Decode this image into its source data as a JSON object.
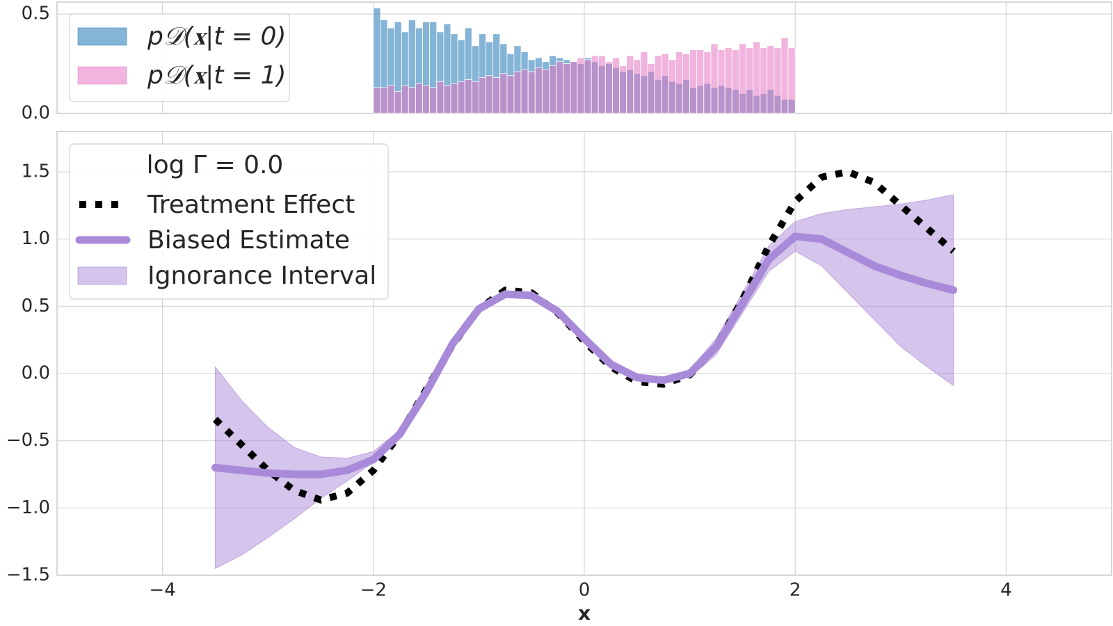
{
  "chart_data": [
    {
      "type": "histogram",
      "bins": [
        -2,
        -1.933,
        -1.867,
        -1.8,
        -1.733,
        -1.667,
        -1.6,
        -1.533,
        -1.467,
        -1.4,
        -1.333,
        -1.267,
        -1.2,
        -1.133,
        -1.067,
        -1,
        -0.933,
        -0.867,
        -0.8,
        -0.733,
        -0.667,
        -0.6,
        -0.533,
        -0.467,
        -0.4,
        -0.333,
        -0.267,
        -0.2,
        -0.133,
        -0.067,
        0,
        0.067,
        0.133,
        0.2,
        0.267,
        0.333,
        0.4,
        0.467,
        0.533,
        0.6,
        0.667,
        0.733,
        0.8,
        0.867,
        0.933,
        1,
        1.067,
        1.133,
        1.2,
        1.267,
        1.333,
        1.4,
        1.467,
        1.533,
        1.6,
        1.667,
        1.733,
        1.8,
        1.867,
        1.933,
        2
      ],
      "series": [
        {
          "name": "p𝒟(𝐱|t = 0)",
          "color": "#1f77b4",
          "values": [
            0.53,
            0.47,
            0.43,
            0.46,
            0.41,
            0.47,
            0.43,
            0.46,
            0.46,
            0.41,
            0.45,
            0.4,
            0.37,
            0.43,
            0.34,
            0.4,
            0.36,
            0.4,
            0.35,
            0.3,
            0.34,
            0.31,
            0.27,
            0.28,
            0.26,
            0.29,
            0.28,
            0.27,
            0.26,
            0.25,
            0.28,
            0.26,
            0.24,
            0.25,
            0.23,
            0.21,
            0.22,
            0.2,
            0.19,
            0.21,
            0.17,
            0.19,
            0.16,
            0.15,
            0.17,
            0.13,
            0.14,
            0.15,
            0.13,
            0.14,
            0.13,
            0.12,
            0.1,
            0.12,
            0.09,
            0.1,
            0.12,
            0.09,
            0.07,
            0.07
          ]
        },
        {
          "name": "p𝒟(𝐱|t = 1)",
          "color": "#e377c2",
          "values": [
            0.13,
            0.13,
            0.14,
            0.11,
            0.14,
            0.13,
            0.15,
            0.14,
            0.13,
            0.16,
            0.14,
            0.15,
            0.16,
            0.17,
            0.16,
            0.18,
            0.19,
            0.18,
            0.2,
            0.19,
            0.21,
            0.22,
            0.21,
            0.23,
            0.22,
            0.24,
            0.26,
            0.25,
            0.26,
            0.28,
            0.27,
            0.29,
            0.29,
            0.26,
            0.28,
            0.24,
            0.29,
            0.27,
            0.31,
            0.25,
            0.29,
            0.3,
            0.27,
            0.31,
            0.3,
            0.32,
            0.32,
            0.31,
            0.35,
            0.32,
            0.33,
            0.32,
            0.35,
            0.33,
            0.36,
            0.33,
            0.34,
            0.33,
            0.38,
            0.33
          ]
        }
      ],
      "xlim": [
        -5,
        5
      ],
      "xticks": [
        {
          "value": -4,
          "label": "−4"
        },
        {
          "value": -2,
          "label": "−2"
        },
        0,
        2,
        4
      ],
      "ylim": [
        0,
        0.56
      ],
      "yticks": [
        {
          "value": 0,
          "label": "0.0"
        },
        0.5
      ],
      "grid": true,
      "legend": "upper left"
    },
    {
      "type": "line",
      "x": [
        -3.5,
        -3.25,
        -3,
        -2.75,
        -2.5,
        -2.25,
        -2,
        -1.75,
        -1.5,
        -1.25,
        -1,
        -0.75,
        -0.5,
        -0.25,
        0,
        0.25,
        0.5,
        0.75,
        1,
        1.25,
        1.5,
        1.75,
        2,
        2.25,
        2.5,
        2.75,
        3,
        3.25,
        3.5
      ],
      "legend_title": "log Γ = 0.0",
      "series": [
        {
          "name": "Treatment Effect",
          "color": "#000000",
          "style": "dotted",
          "values": [
            -0.34,
            -0.53,
            -0.72,
            -0.87,
            -0.94,
            -0.89,
            -0.72,
            -0.45,
            -0.12,
            0.21,
            0.48,
            0.62,
            0.6,
            0.45,
            0.24,
            0.05,
            -0.06,
            -0.08,
            -0.01,
            0.2,
            0.55,
            0.95,
            1.28,
            1.46,
            1.5,
            1.42,
            1.25,
            1.08,
            0.91
          ]
        },
        {
          "name": "Biased Estimate",
          "color": "#a98ad9",
          "style": "solid",
          "values": [
            -0.7,
            -0.72,
            -0.74,
            -0.75,
            -0.75,
            -0.72,
            -0.64,
            -0.45,
            -0.14,
            0.22,
            0.48,
            0.59,
            0.58,
            0.46,
            0.26,
            0.07,
            -0.03,
            -0.05,
            0.0,
            0.2,
            0.52,
            0.85,
            1.02,
            1.0,
            0.9,
            0.8,
            0.73,
            0.67,
            0.62
          ]
        },
        {
          "name": "Ignorance Interval",
          "color": "#9b72cf",
          "style": "band",
          "lower": [
            -1.45,
            -1.35,
            -1.22,
            -1.08,
            -0.93,
            -0.8,
            -0.66,
            -0.47,
            -0.15,
            0.21,
            0.47,
            0.58,
            0.57,
            0.45,
            0.25,
            0.06,
            -0.04,
            -0.06,
            -0.03,
            0.14,
            0.45,
            0.76,
            0.91,
            0.8,
            0.6,
            0.4,
            0.2,
            0.05,
            -0.09
          ],
          "upper": [
            0.05,
            -0.2,
            -0.4,
            -0.55,
            -0.62,
            -0.63,
            -0.58,
            -0.42,
            -0.12,
            0.24,
            0.5,
            0.61,
            0.6,
            0.47,
            0.27,
            0.08,
            -0.01,
            -0.03,
            0.03,
            0.26,
            0.6,
            0.95,
            1.13,
            1.19,
            1.22,
            1.24,
            1.26,
            1.29,
            1.33
          ]
        }
      ],
      "xlabel": "x",
      "xlim": [
        -5,
        5
      ],
      "xticks": [
        {
          "value": -4,
          "label": "−4"
        },
        {
          "value": -2,
          "label": "−2"
        },
        0,
        2,
        4
      ],
      "ylim": [
        -1.5,
        1.8
      ],
      "yticks": [
        {
          "value": -1.5,
          "label": "−1.5"
        },
        {
          "value": -1,
          "label": "−1.0"
        },
        {
          "value": -0.5,
          "label": "−0.5"
        },
        {
          "value": 0,
          "label": "0.0"
        },
        0.5,
        {
          "value": 1,
          "label": "1.0"
        },
        1.5
      ],
      "grid": true,
      "legend": "upper left"
    }
  ]
}
